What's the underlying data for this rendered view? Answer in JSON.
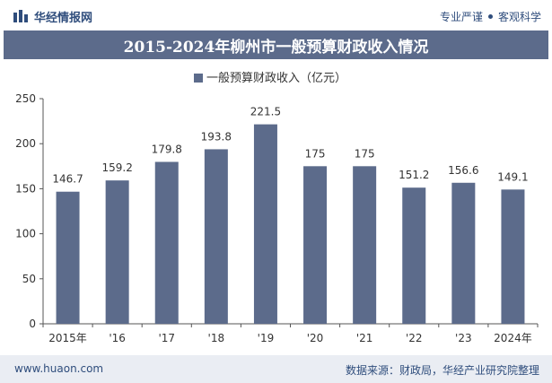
{
  "header": {
    "brand": "华经情报网",
    "tagline_left": "专业严谨",
    "tagline_right": "客观科学",
    "logo_icon": "bar-logo-icon"
  },
  "title": "2015-2024年柳州市一般预算财政收入情况",
  "footer": {
    "url": "www.huaon.com",
    "source": "数据来源：财政局，华经产业研究院整理"
  },
  "colors": {
    "bar": "#5c6b8b",
    "title_bg": "#5c6b8b",
    "footer_bg": "#eaedf3"
  },
  "chart_data": {
    "type": "bar",
    "categories": [
      "2015年",
      "'16",
      "'17",
      "'18",
      "'19",
      "'20",
      "'21",
      "'22",
      "'23",
      "2024年"
    ],
    "series": [
      {
        "name": "一般预算财政收入（亿元）",
        "values": [
          146.7,
          159.2,
          179.8,
          193.8,
          221.5,
          175,
          175,
          151.2,
          156.6,
          149.1
        ]
      }
    ],
    "data_labels": [
      "146.7",
      "159.2",
      "179.8",
      "193.8",
      "221.5",
      "175",
      "175",
      "151.2",
      "156.6",
      "149.1"
    ],
    "ylim": [
      0,
      250
    ],
    "yticks": [
      0,
      50,
      100,
      150,
      200,
      250
    ],
    "legend_position": "top-center",
    "grid": false
  }
}
